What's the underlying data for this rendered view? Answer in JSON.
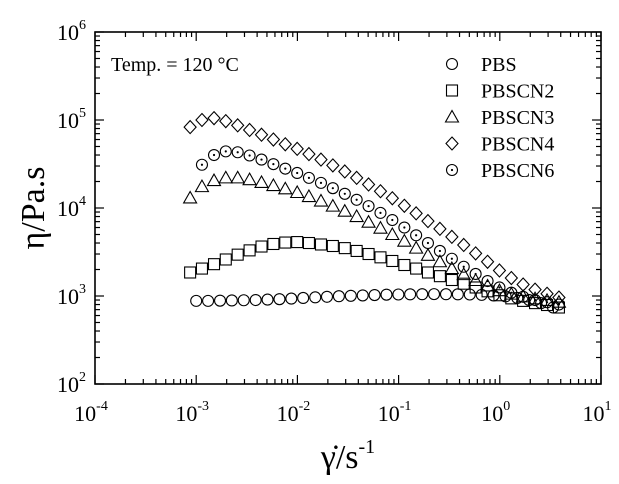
{
  "chart_data": {
    "type": "scatter",
    "title": "",
    "xlabel": "γ̇/s",
    "xlabel_superscript": "-1",
    "ylabel": "η/Pa.s",
    "annotation": "Temp. = 120 °C",
    "x_scale": "log",
    "y_scale": "log",
    "xlim": [
      0.0001,
      10
    ],
    "ylim": [
      100,
      1000000
    ],
    "grid": false,
    "legend_position": "top-right",
    "x_ticks": [
      {
        "base": "10",
        "exp": "-4"
      },
      {
        "base": "10",
        "exp": "-3"
      },
      {
        "base": "10",
        "exp": "-2"
      },
      {
        "base": "10",
        "exp": "-1"
      },
      {
        "base": "10",
        "exp": "0"
      },
      {
        "base": "10",
        "exp": "1"
      }
    ],
    "y_ticks": [
      {
        "base": "10",
        "exp": "2"
      },
      {
        "base": "10",
        "exp": "3"
      },
      {
        "base": "10",
        "exp": "4"
      },
      {
        "base": "10",
        "exp": "5"
      },
      {
        "base": "10",
        "exp": "6"
      }
    ],
    "series": [
      {
        "name": "PBS",
        "marker": "circle",
        "x": [
          0.001,
          0.00131,
          0.00172,
          0.00225,
          0.00295,
          0.00387,
          0.00507,
          0.00665,
          0.00871,
          0.0114,
          0.015,
          0.0196,
          0.0257,
          0.0337,
          0.0442,
          0.0579,
          0.0759,
          0.0995,
          0.13,
          0.171,
          0.224,
          0.294,
          0.385,
          0.505,
          0.662,
          0.867,
          1.14,
          1.49,
          1.95,
          2.56,
          3.36
        ],
        "y": [
          880,
          880,
          885,
          890,
          895,
          900,
          910,
          920,
          935,
          950,
          965,
          980,
          995,
          1005,
          1015,
          1025,
          1035,
          1040,
          1045,
          1048,
          1050,
          1048,
          1045,
          1040,
          1030,
          1015,
          990,
          950,
          900,
          830,
          740
        ]
      },
      {
        "name": "PBSCN2",
        "marker": "square",
        "x": [
          0.000871,
          0.00114,
          0.0015,
          0.00196,
          0.00257,
          0.00337,
          0.00442,
          0.00579,
          0.00759,
          0.00995,
          0.013,
          0.0171,
          0.0224,
          0.0294,
          0.0385,
          0.0505,
          0.0662,
          0.0867,
          0.114,
          0.149,
          0.195,
          0.256,
          0.336,
          0.44,
          0.577,
          0.757,
          0.992,
          1.3,
          1.7,
          2.23,
          2.93,
          3.84
        ],
        "y": [
          1850,
          2050,
          2300,
          2600,
          2950,
          3300,
          3650,
          3900,
          4050,
          4100,
          4000,
          3850,
          3700,
          3500,
          3250,
          3000,
          2750,
          2500,
          2250,
          2050,
          1850,
          1680,
          1520,
          1380,
          1250,
          1130,
          1020,
          940,
          880,
          830,
          790,
          740
        ]
      },
      {
        "name": "PBSCN3",
        "marker": "triangle",
        "x": [
          0.000871,
          0.00114,
          0.0015,
          0.00196,
          0.00257,
          0.00337,
          0.00442,
          0.00579,
          0.00759,
          0.00995,
          0.013,
          0.0171,
          0.0224,
          0.0294,
          0.0385,
          0.0505,
          0.0662,
          0.0867,
          0.114,
          0.149,
          0.195,
          0.256,
          0.336,
          0.44,
          0.577,
          0.757,
          0.992,
          1.3,
          1.7,
          2.23,
          2.93,
          3.84
        ],
        "y": [
          13000,
          17500,
          20500,
          22000,
          22000,
          21000,
          19500,
          18000,
          16500,
          15000,
          13500,
          12000,
          10500,
          9200,
          8000,
          6900,
          5900,
          5000,
          4200,
          3500,
          2900,
          2450,
          2050,
          1750,
          1500,
          1300,
          1150,
          1050,
          980,
          930,
          890,
          850
        ]
      },
      {
        "name": "PBSCN4",
        "marker": "diamond",
        "x": [
          0.000871,
          0.00114,
          0.0015,
          0.00196,
          0.00257,
          0.00337,
          0.00442,
          0.00579,
          0.00759,
          0.00995,
          0.013,
          0.0171,
          0.0224,
          0.0294,
          0.0385,
          0.0505,
          0.0662,
          0.0867,
          0.114,
          0.149,
          0.195,
          0.256,
          0.336,
          0.44,
          0.577,
          0.757,
          0.992,
          1.3,
          1.7,
          2.23,
          2.93,
          3.84
        ],
        "y": [
          83000,
          100000,
          105000,
          97000,
          87000,
          77000,
          68000,
          60000,
          53000,
          47000,
          41000,
          35500,
          30500,
          26000,
          22000,
          18500,
          15500,
          12900,
          10600,
          8700,
          7100,
          5800,
          4700,
          3800,
          3050,
          2450,
          1950,
          1600,
          1350,
          1180,
          1060,
          960
        ]
      },
      {
        "name": "PBSCN6",
        "marker": "circle-dot",
        "x": [
          0.00114,
          0.0015,
          0.00196,
          0.00257,
          0.00337,
          0.00442,
          0.00579,
          0.00759,
          0.00995,
          0.013,
          0.0171,
          0.0224,
          0.0294,
          0.0385,
          0.0505,
          0.0662,
          0.0867,
          0.114,
          0.149,
          0.195,
          0.256,
          0.336,
          0.44,
          0.577,
          0.757,
          0.992,
          1.3,
          1.7,
          2.23,
          2.93,
          3.84
        ],
        "y": [
          31000,
          40000,
          44000,
          43000,
          39500,
          35500,
          31500,
          28000,
          25000,
          22000,
          19300,
          16800,
          14500,
          12400,
          10500,
          8800,
          7300,
          6000,
          4900,
          4000,
          3250,
          2650,
          2150,
          1780,
          1480,
          1250,
          1090,
          980,
          900,
          850,
          800
        ]
      }
    ]
  }
}
